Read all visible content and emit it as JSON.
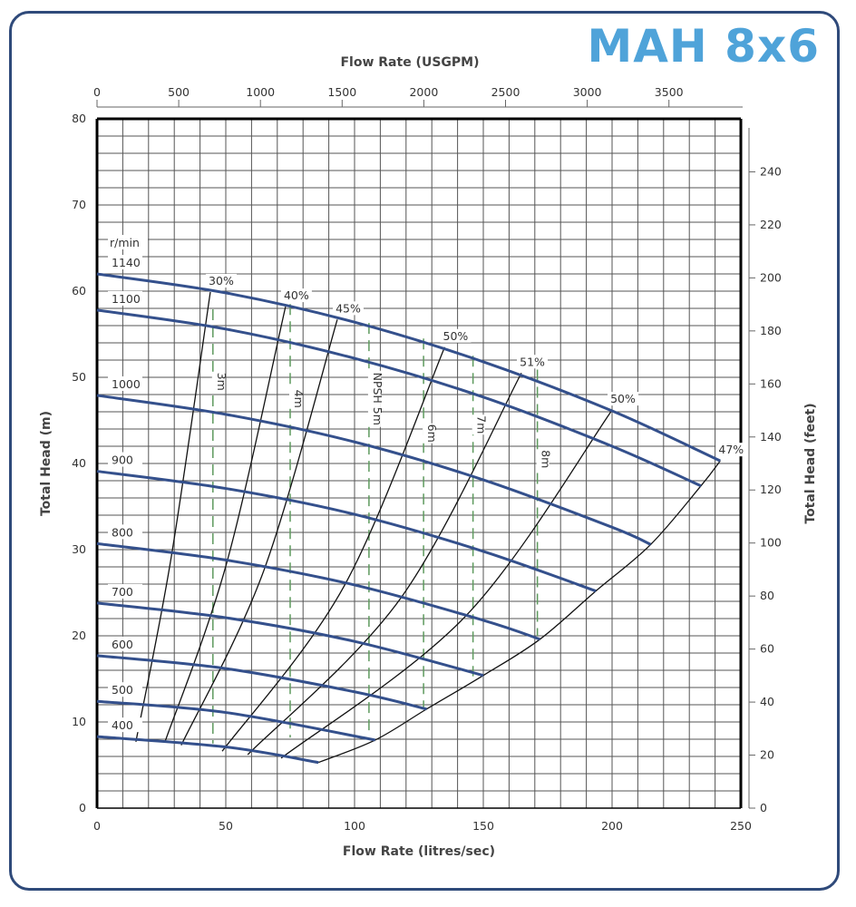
{
  "title": "MAH 8x6",
  "chart_data": {
    "type": "line",
    "title": "MAH 8x6",
    "xlabel": "Flow Rate (litres/sec)",
    "ylabel": "Total Head (m)",
    "xlim": [
      0,
      250
    ],
    "ylim": [
      0,
      80
    ],
    "xticks": [
      0,
      50,
      100,
      150,
      200,
      250
    ],
    "yticks": [
      0,
      10,
      20,
      30,
      40,
      50,
      60,
      70,
      80
    ],
    "grid": true,
    "grid_step_x": 10,
    "grid_step_y": 2,
    "top_axis": {
      "label": "Flow Rate (USGPM)",
      "lim": [
        0,
        3940
      ],
      "ticks": [
        0,
        500,
        1000,
        1500,
        2000,
        2500,
        3000,
        3500
      ]
    },
    "right_axis": {
      "label": "Total Head (feet)",
      "lim": [
        0,
        260
      ],
      "ticks": [
        0,
        20,
        40,
        60,
        80,
        100,
        120,
        140,
        160,
        180,
        200,
        220,
        240
      ]
    },
    "speed_unit_label": "r/min",
    "speed_curves": [
      {
        "name": "1140",
        "points": [
          [
            0,
            62.0
          ],
          [
            50,
            59.8
          ],
          [
            100,
            56.4
          ],
          [
            150,
            51.8
          ],
          [
            200,
            46.1
          ],
          [
            242,
            40.3
          ]
        ]
      },
      {
        "name": "1100",
        "points": [
          [
            0,
            57.8
          ],
          [
            50,
            55.6
          ],
          [
            100,
            52.2
          ],
          [
            150,
            47.7
          ],
          [
            200,
            42.0
          ],
          [
            234.5,
            37.4
          ]
        ]
      },
      {
        "name": "1000",
        "points": [
          [
            0,
            47.9
          ],
          [
            50,
            45.7
          ],
          [
            100,
            42.5
          ],
          [
            150,
            38.1
          ],
          [
            200,
            32.6
          ],
          [
            215,
            30.6
          ]
        ]
      },
      {
        "name": "900",
        "points": [
          [
            0,
            39.1
          ],
          [
            50,
            37.1
          ],
          [
            100,
            34.1
          ],
          [
            150,
            29.8
          ],
          [
            193.7,
            25.2
          ]
        ]
      },
      {
        "name": "800",
        "points": [
          [
            0,
            30.7
          ],
          [
            50,
            28.8
          ],
          [
            100,
            25.9
          ],
          [
            150,
            21.8
          ],
          [
            172,
            19.6
          ]
        ]
      },
      {
        "name": "700",
        "points": [
          [
            0,
            23.8
          ],
          [
            50,
            22.1
          ],
          [
            100,
            19.35
          ],
          [
            150,
            15.4
          ]
        ]
      },
      {
        "name": "600",
        "points": [
          [
            0,
            17.7
          ],
          [
            50,
            16.2
          ],
          [
            100,
            13.5
          ],
          [
            128,
            11.5
          ]
        ]
      },
      {
        "name": "500",
        "points": [
          [
            0,
            12.4
          ],
          [
            50,
            11.1
          ],
          [
            108,
            7.9
          ]
        ]
      },
      {
        "name": "400",
        "points": [
          [
            0,
            8.3
          ],
          [
            50,
            7.1
          ],
          [
            86,
            5.3
          ]
        ]
      }
    ],
    "efficiency_curves": [
      {
        "name": "30%",
        "points": [
          [
            15.1,
            7.7
          ],
          [
            28.8,
            29.1
          ],
          [
            44,
            59.9
          ]
        ]
      },
      {
        "name": "40%",
        "points": [
          [
            26.4,
            7.7
          ],
          [
            50.3,
            28.4
          ],
          [
            73.2,
            58.2
          ]
        ]
      },
      {
        "name": "45%",
        "points": [
          [
            32.7,
            7.3
          ],
          [
            64.8,
            27.6
          ],
          [
            93.3,
            56.7
          ]
        ]
      },
      {
        "name": "50%",
        "points": [
          [
            48.6,
            6.6
          ],
          [
            96,
            25.8
          ],
          [
            135,
            53.5
          ]
        ]
      },
      {
        "name": "51%",
        "points": [
          [
            58.5,
            6.2
          ],
          [
            118,
            24.4
          ],
          [
            164.8,
            50.5
          ]
        ]
      },
      {
        "name": "50%",
        "points": [
          [
            71.5,
            5.8
          ],
          [
            143.5,
            22.4
          ],
          [
            200,
            46.2
          ]
        ]
      },
      {
        "name": "47%",
        "points": [
          [
            86,
            5.3
          ],
          [
            108,
            7.9
          ],
          [
            128,
            11.5
          ],
          [
            150,
            15.4
          ],
          [
            172,
            19.6
          ],
          [
            193.7,
            25.2
          ],
          [
            215,
            30.6
          ],
          [
            234.5,
            37.4
          ],
          [
            242,
            40.3
          ]
        ]
      }
    ],
    "npsh_lines": [
      {
        "name": "3m",
        "q": 45,
        "h_range": [
          7.5,
          57.9
        ],
        "label_h": 49.5
      },
      {
        "name": "4m",
        "q": 75,
        "h_range": [
          8.2,
          58.5
        ],
        "label_h": 47.5
      },
      {
        "name": "NPSH 5m",
        "q": 105.6,
        "h_range": [
          8.8,
          56.3
        ],
        "label_h": 47.5
      },
      {
        "name": "6m",
        "q": 126.8,
        "h_range": [
          11.7,
          54.5
        ],
        "label_h": 43.5
      },
      {
        "name": "7m",
        "q": 146,
        "h_range": [
          15.3,
          52.5
        ],
        "label_h": 44.5
      },
      {
        "name": "8m",
        "q": 171,
        "h_range": [
          20.0,
          50.9
        ],
        "label_h": 40.5
      }
    ],
    "colors": {
      "speed": "#34508c",
      "efficiency": "#111111",
      "npsh": "#5e9a5e",
      "grid": "#555555",
      "title": "#4fa3d9"
    }
  }
}
